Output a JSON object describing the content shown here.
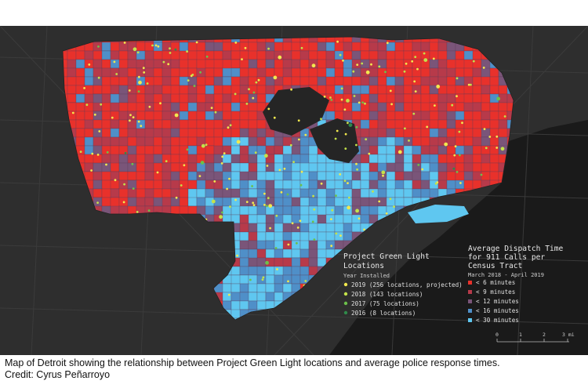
{
  "map": {
    "legend_green_light": {
      "title_line1": "Project Green Light",
      "title_line2": "Locations",
      "subtitle": "Year Installed",
      "items": [
        {
          "label": "2019 (256 locations, projected)",
          "color": "#f2e94e"
        },
        {
          "label": "2018 (143 locations)",
          "color": "#c4e24a"
        },
        {
          "label": "2017 (75 locations)",
          "color": "#6cc04a"
        },
        {
          "label": "2016 (8 locations)",
          "color": "#2f8a4a"
        }
      ]
    },
    "legend_dispatch": {
      "title_line1": "Average Dispatch Time",
      "title_line2": "for 911 Calls per",
      "title_line3": "Census Tract",
      "subtitle": "March 2018 - April 2019",
      "items": [
        {
          "label": "< 6 minutes",
          "color": "#e8312b"
        },
        {
          "label": "< 9 minutes",
          "color": "#b73a4a"
        },
        {
          "label": "< 12 minutes",
          "color": "#7a5579"
        },
        {
          "label": "< 16 minutes",
          "color": "#4f8fc8"
        },
        {
          "label": "< 30 minutes",
          "color": "#5fc7f0"
        }
      ]
    },
    "scale_bar": {
      "ticks": [
        "0",
        "1",
        "2",
        "3 mi"
      ]
    },
    "colors": {
      "background": "#2e2e2e",
      "road": "#3d3d3d",
      "water": "#1a1a1a"
    }
  },
  "caption": {
    "line1": "Map of Detroit showing the relationship between Project Green Light locations and average police response times.",
    "line2": "Credit: Cyrus Peñarroyo"
  }
}
